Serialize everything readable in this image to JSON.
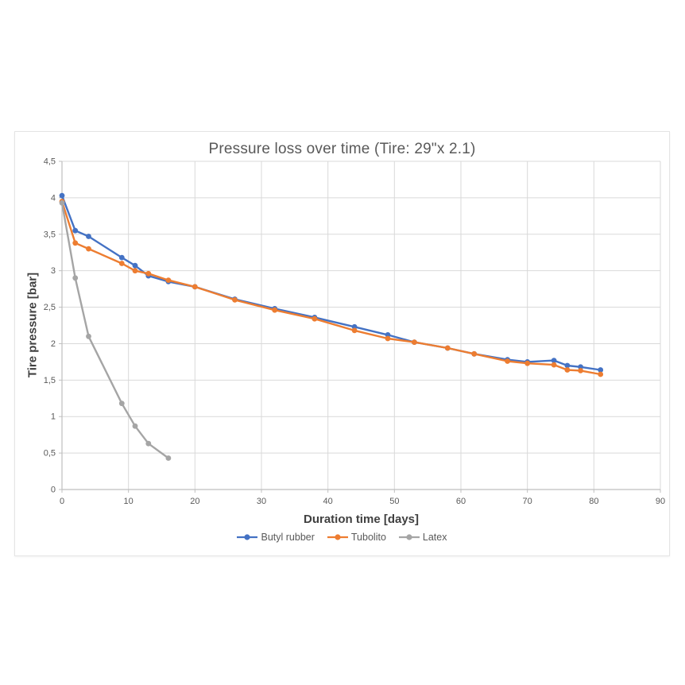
{
  "page": {
    "background": "#ffffff"
  },
  "chart_data": {
    "type": "line",
    "title": "Pressure loss over time (Tire: 29\"x 2.1)",
    "xlabel": "Duration time [days]",
    "ylabel": "Tire pressure [bar]",
    "xlim": [
      0,
      90
    ],
    "ylim": [
      0,
      4.5
    ],
    "grid": true,
    "legend_position": "bottom",
    "x_ticks": {
      "values": [
        0,
        10,
        20,
        30,
        40,
        50,
        60,
        70,
        80,
        90
      ],
      "labels": [
        "0",
        "10",
        "20",
        "30",
        "40",
        "50",
        "60",
        "70",
        "80",
        "90"
      ]
    },
    "y_ticks": {
      "values": [
        0,
        0.5,
        1,
        1.5,
        2,
        2.5,
        3,
        3.5,
        4,
        4.5
      ],
      "labels": [
        "0",
        "0,5",
        "1",
        "1,5",
        "2",
        "2,5",
        "3",
        "3,5",
        "4",
        "4,5"
      ]
    },
    "x": [
      0,
      2,
      4,
      9,
      11,
      13,
      16,
      20,
      26,
      32,
      38,
      44,
      49,
      53,
      58,
      62,
      67,
      70,
      74,
      76,
      78,
      81
    ],
    "series": [
      {
        "name": "Butyl rubber",
        "color": "#4472C4",
        "values": [
          4.03,
          3.55,
          3.47,
          3.18,
          3.07,
          2.93,
          2.85,
          2.78,
          2.61,
          2.48,
          2.36,
          2.23,
          2.12,
          2.02,
          1.94,
          1.86,
          1.78,
          1.75,
          1.77,
          1.7,
          1.68,
          1.64
        ]
      },
      {
        "name": "Tubolito",
        "color": "#ED7D31",
        "values": [
          3.95,
          3.38,
          3.3,
          3.1,
          3.0,
          2.96,
          2.87,
          2.78,
          2.6,
          2.46,
          2.34,
          2.18,
          2.07,
          2.02,
          1.94,
          1.86,
          1.76,
          1.73,
          1.71,
          1.64,
          1.63,
          1.58
        ]
      },
      {
        "name": "Latex",
        "color": "#A5A5A5",
        "values": [
          3.93,
          2.9,
          2.1,
          1.18,
          0.87,
          0.63,
          0.43,
          null,
          null,
          null,
          null,
          null,
          null,
          null,
          null,
          null,
          null,
          null,
          null,
          null,
          null,
          null
        ]
      }
    ],
    "colors": {
      "gridline": "#D9D9D9",
      "axis_line": "#BFBFBF",
      "title_text": "#595959",
      "tick_text": "#595959",
      "axis_title_text": "#404040",
      "legend_text": "#595959",
      "chart_border": "#E4E4E4"
    }
  }
}
